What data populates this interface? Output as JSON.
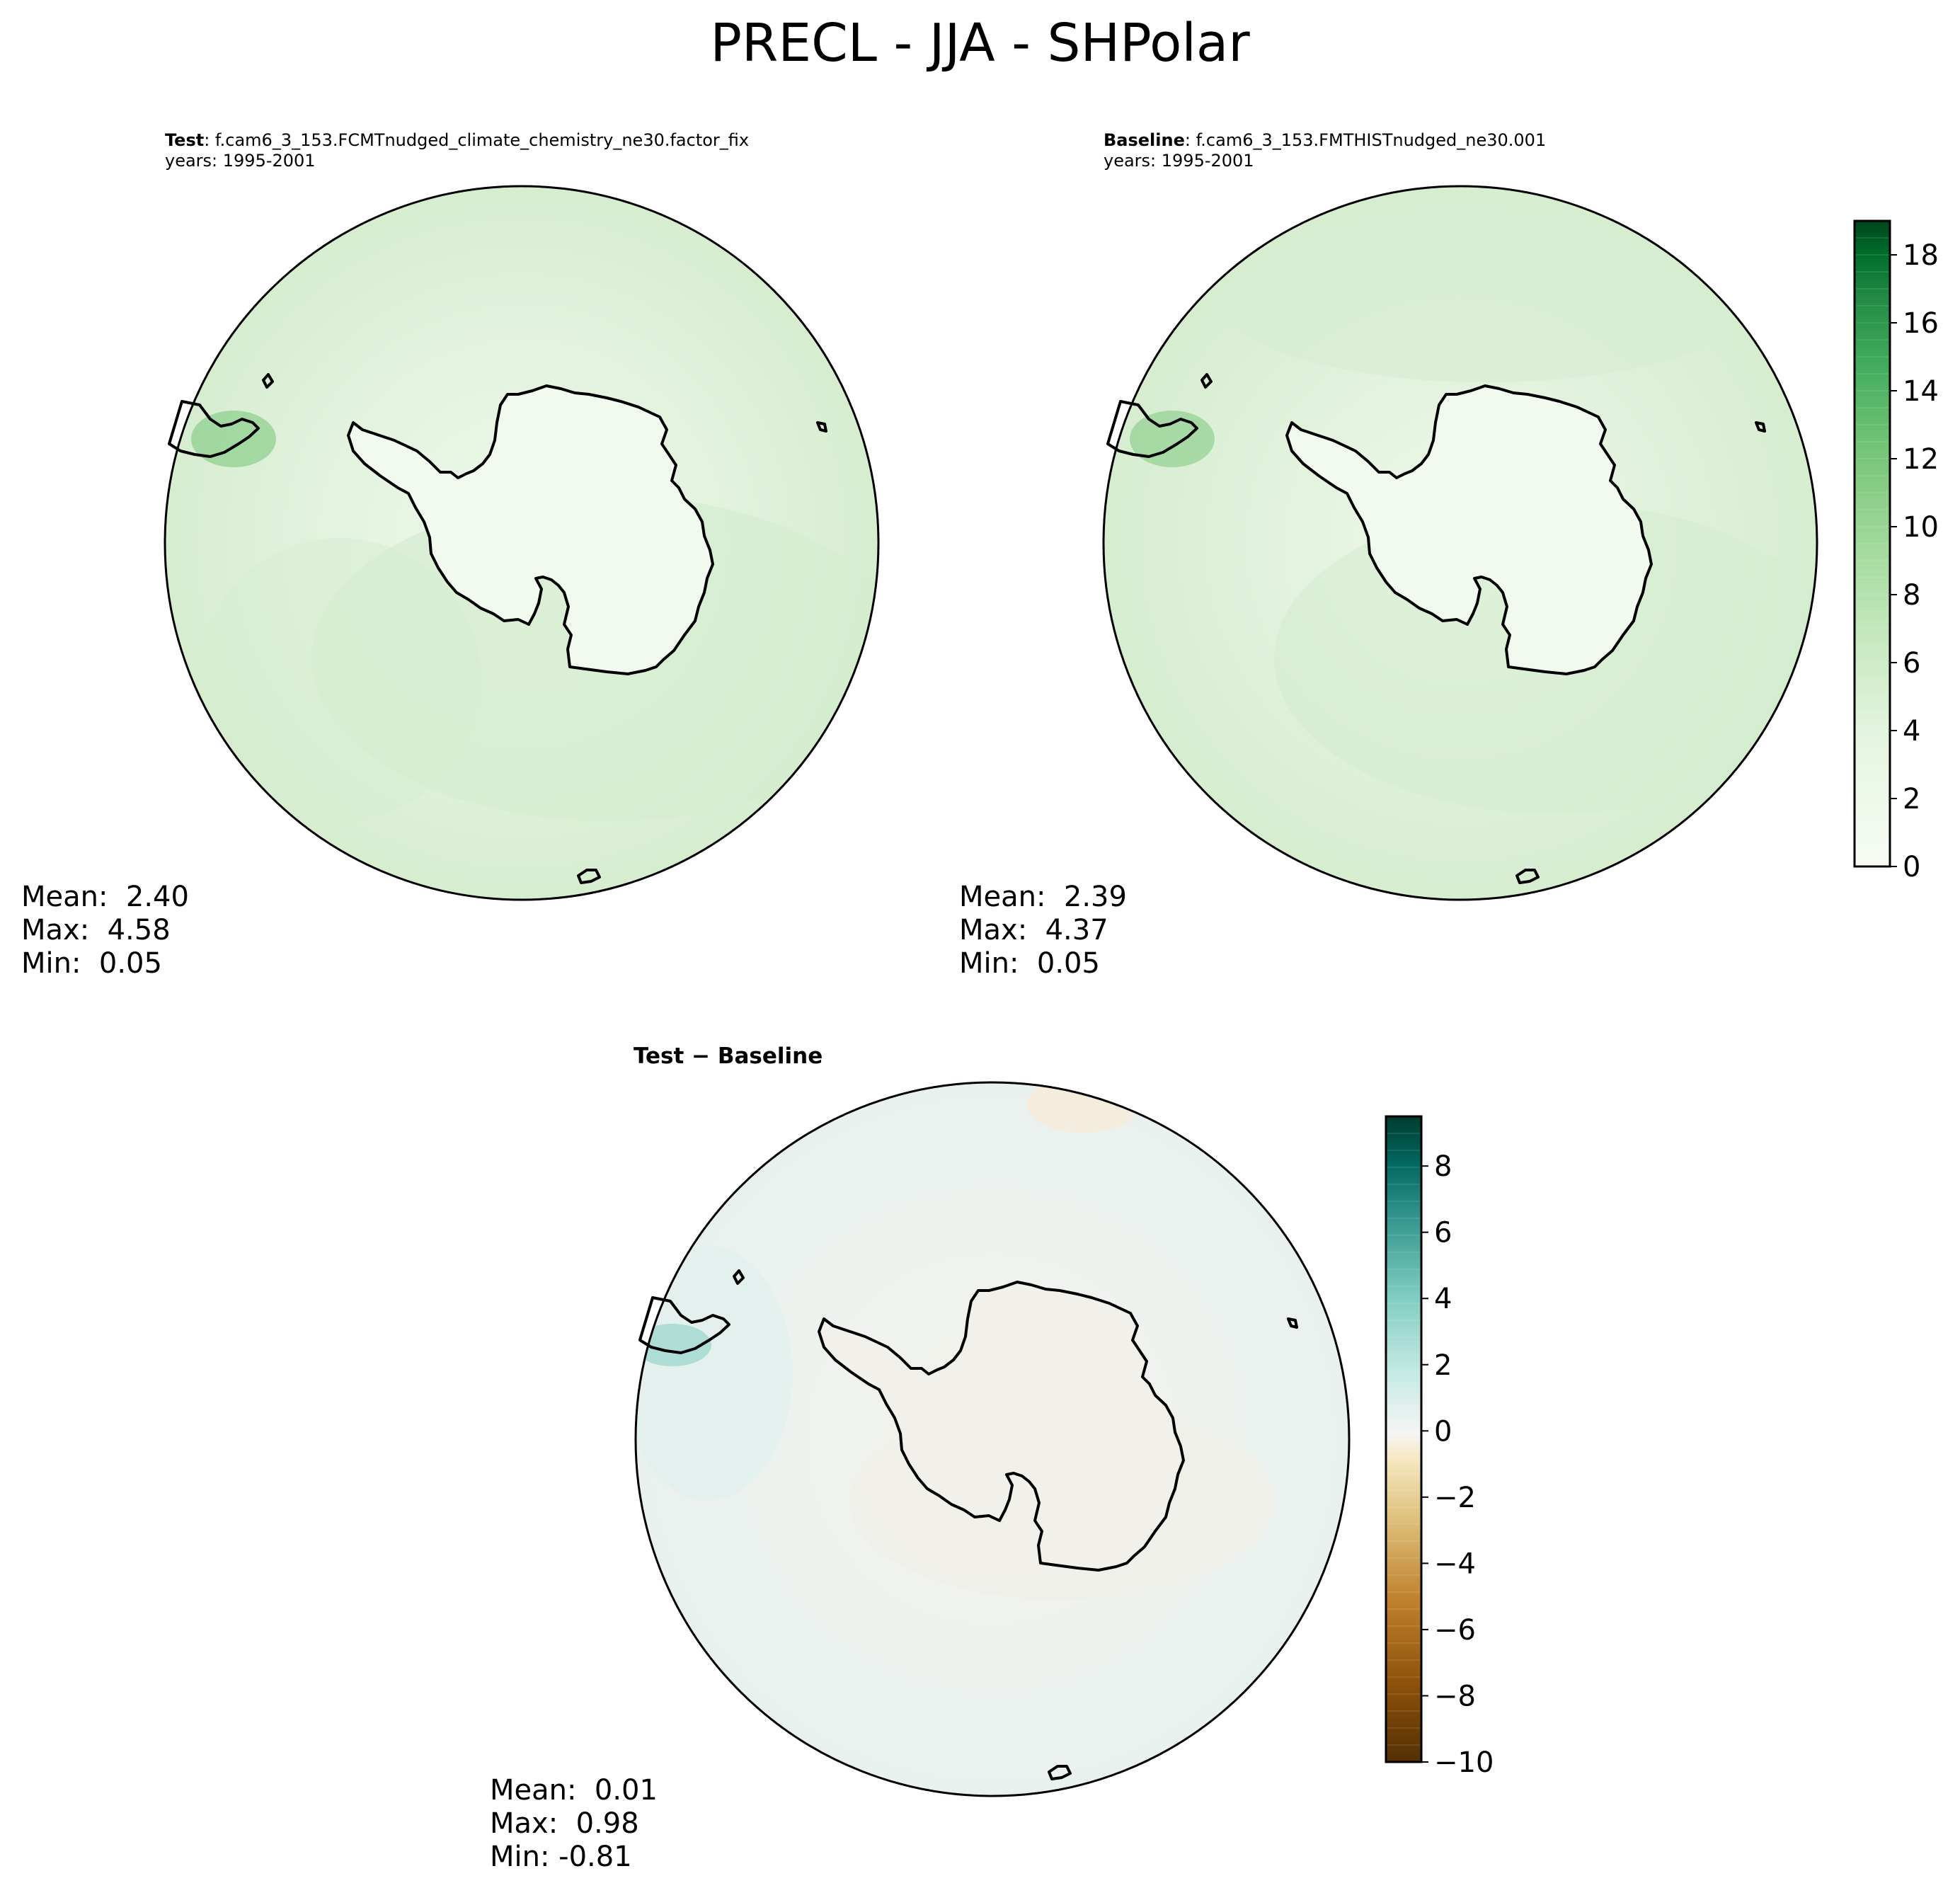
{
  "title": "PRECL - JJA - SHPolar",
  "panels": {
    "test": {
      "label_bold": "Test",
      "label_rest": ": f.cam6_3_153.FCMTnudged_climate_chemistry_ne30.factor_fix",
      "years": "years: 1995-2001",
      "mean": "Mean:  2.40",
      "max": "Max:  4.58",
      "min": "Min:  0.05"
    },
    "baseline": {
      "label_bold": "Baseline",
      "label_rest": ": f.cam6_3_153.FMTHISTnudged_ne30.001",
      "years": "years: 1995-2001",
      "mean": "Mean:  2.39",
      "max": "Max:  4.37",
      "min": "Min:  0.05"
    },
    "diff": {
      "label": "Test − Baseline",
      "mean": "Mean:  0.01",
      "max": "Max:  0.98",
      "min": "Min: -0.81"
    }
  },
  "colorbars": {
    "precip": {
      "colormap": "Greens",
      "range": [
        0,
        19
      ],
      "levels": 19,
      "ticks": [
        "0",
        "2",
        "4",
        "6",
        "8",
        "10",
        "12",
        "14",
        "16",
        "18"
      ],
      "tick_values": [
        0,
        2,
        4,
        6,
        8,
        10,
        12,
        14,
        16,
        18
      ]
    },
    "difference": {
      "colormap": "BrBG",
      "range": [
        -10,
        9.5
      ],
      "ticks": [
        "−10",
        "−8",
        "−6",
        "−4",
        "−2",
        "0",
        "2",
        "4",
        "6",
        "8"
      ],
      "tick_values": [
        -10,
        -8,
        -6,
        -4,
        -2,
        0,
        2,
        4,
        6,
        8
      ]
    }
  },
  "colors": {
    "map_base_test": "#dcf0d6",
    "map_base_baseline": "#d8eed2",
    "map_base_diff": "#eef2ef",
    "antarctica_fill": "#f2faf0",
    "coastline": "#000000"
  }
}
